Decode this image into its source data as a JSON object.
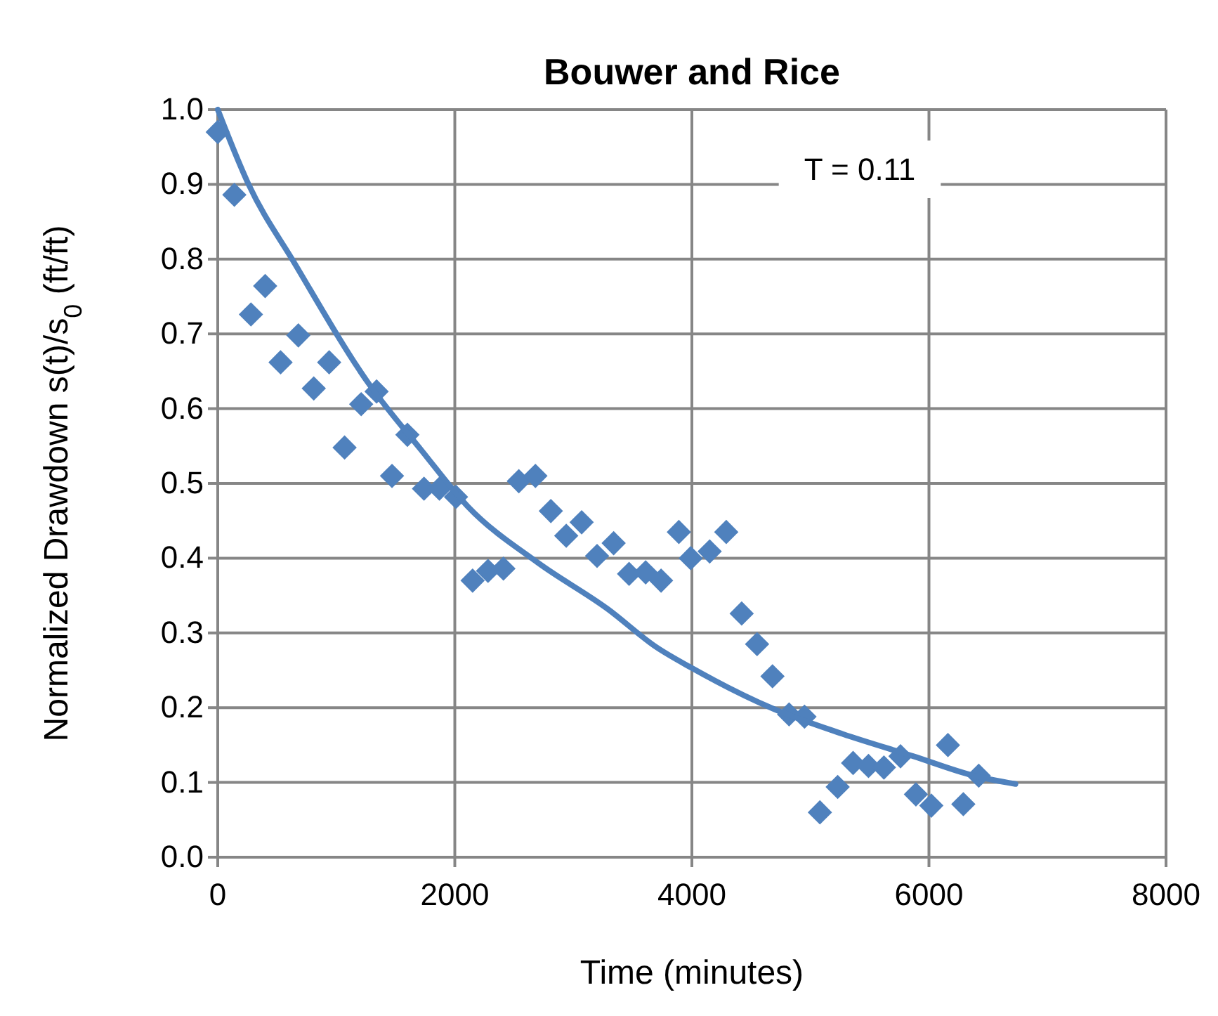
{
  "chart_data": {
    "type": "scatter",
    "title": "Bouwer and Rice",
    "xlabel": "Time (minutes)",
    "ylabel": "Normalized Drawdown s(t)/s$_{0}$ (ft/ft)",
    "xlim": [
      0,
      8000
    ],
    "xticks": [
      0,
      2000,
      4000,
      6000,
      8000
    ],
    "ylim": [
      0,
      1
    ],
    "yticks": [
      {
        "value": 0,
        "label": "0.0"
      },
      {
        "value": 0.1,
        "label": "0.1"
      },
      {
        "value": 0.2,
        "label": "0.2"
      },
      {
        "value": 0.3,
        "label": "0.3"
      },
      {
        "value": 0.4,
        "label": "0.4"
      },
      {
        "value": 0.5,
        "label": "0.5"
      },
      {
        "value": 0.6,
        "label": "0.6"
      },
      {
        "value": 0.7,
        "label": "0.7"
      },
      {
        "value": 0.8,
        "label": "0.8"
      },
      {
        "value": 0.9,
        "label": "0.9"
      },
      {
        "value": 1,
        "label": "1.0"
      }
    ],
    "grid": true,
    "line_style": "solid",
    "annotations": [
      "T = 0.11"
    ],
    "series": [
      {
        "color": "#4f81bd",
        "x": [
          0,
          140,
          280,
          400,
          530,
          680,
          810,
          940,
          1070,
          1210,
          1340,
          1470,
          1600,
          1740,
          1870,
          2010,
          2150,
          2280,
          2410,
          2540,
          2680,
          2810,
          2940,
          3070,
          3200,
          3340,
          3470,
          3610,
          3740,
          3890,
          3990,
          4150,
          4290,
          4420,
          4550,
          4680,
          4820,
          4950,
          5080,
          5230,
          5360,
          5490,
          5620,
          5760,
          5890,
          6020,
          6160,
          6290,
          6420
        ],
        "marker": "diamond",
        "values": [
          0.97,
          0.886,
          0.726,
          0.764,
          0.662,
          0.698,
          0.627,
          0.662,
          0.548,
          0.606,
          0.623,
          0.51,
          0.565,
          0.493,
          0.493,
          0.482,
          0.37,
          0.383,
          0.386,
          0.503,
          0.51,
          0.463,
          0.43,
          0.448,
          0.403,
          0.42,
          0.379,
          0.381,
          0.37,
          0.435,
          0.4,
          0.409,
          0.435,
          0.326,
          0.285,
          0.242,
          0.191,
          0.188,
          0.06,
          0.094,
          0.126,
          0.122,
          0.12,
          0.135,
          0.084,
          0.069,
          0.15,
          0.071,
          0.109
        ]
      },
      {
        "type": "line",
        "color": "#4f81bd",
        "x": [
          0,
          260,
          650,
          1280,
          1720,
          2110,
          2700,
          3290,
          3700,
          4000,
          4680,
          5270,
          5870,
          6380,
          6730
        ],
        "values": [
          1.0,
          0.9,
          0.794,
          0.632,
          0.544,
          0.469,
          0.394,
          0.332,
          0.281,
          0.253,
          0.199,
          0.165,
          0.135,
          0.109,
          0.098
        ]
      }
    ]
  }
}
